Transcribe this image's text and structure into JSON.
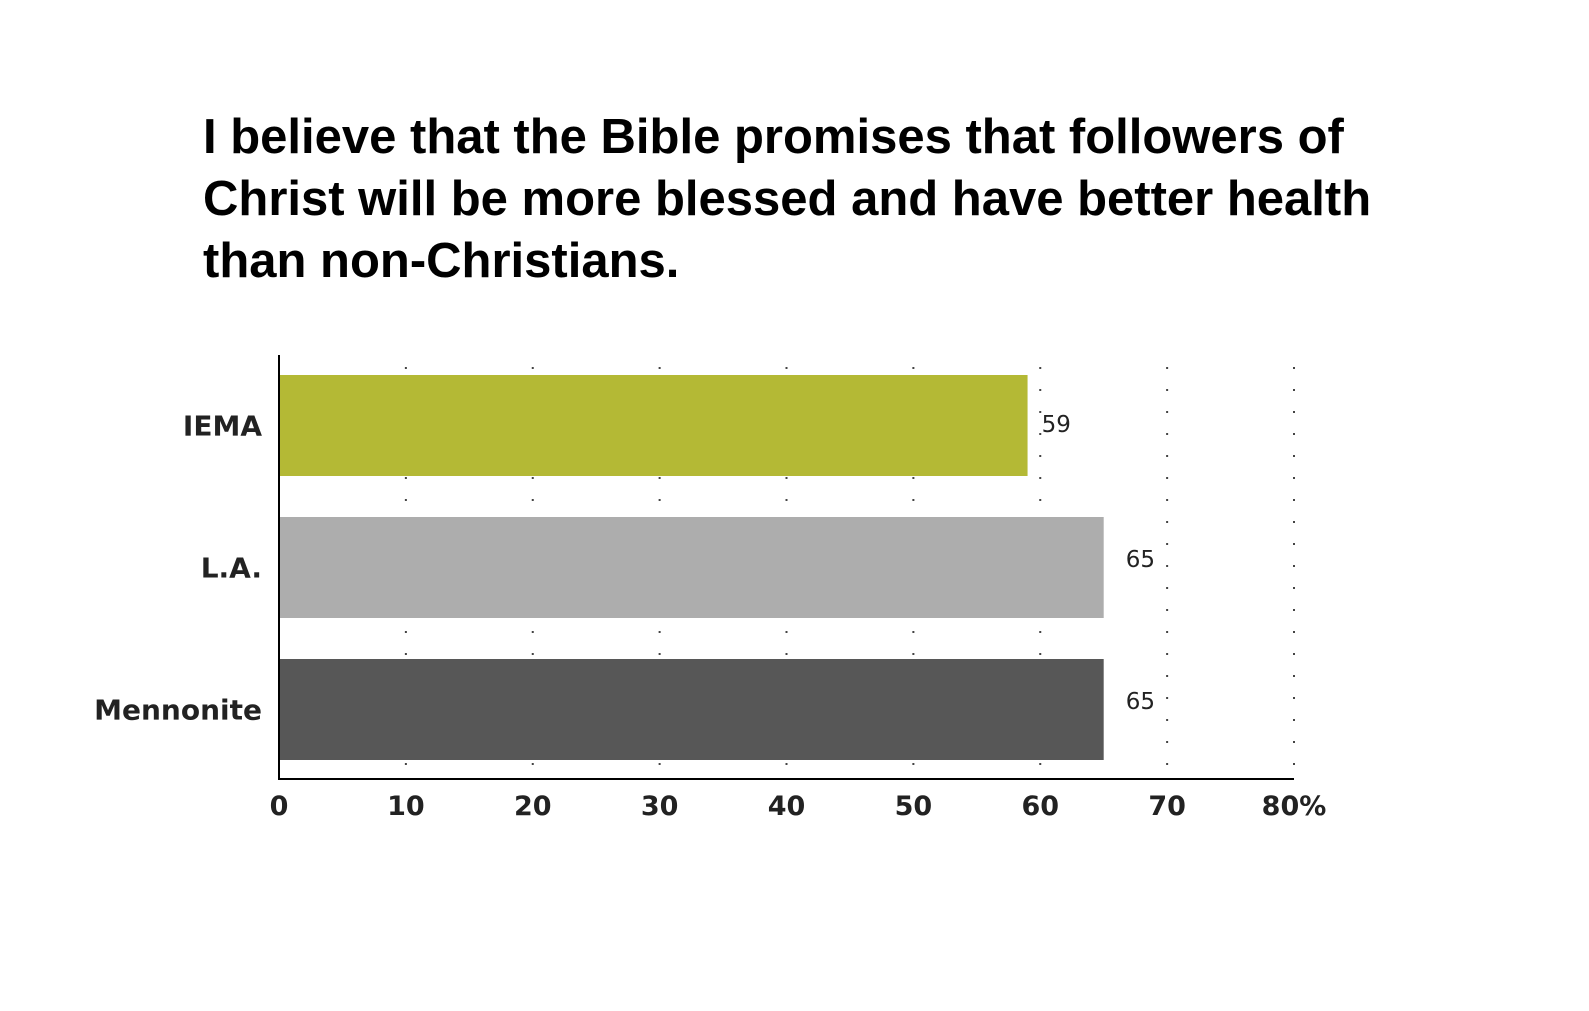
{
  "chart_data": {
    "type": "bar",
    "orientation": "horizontal",
    "title": "I believe that the Bible promises that followers of Christ will be more blessed and have better health than non-Christians.",
    "categories": [
      "IEMA",
      "L.A.",
      "Mennonite"
    ],
    "values": [
      59,
      65,
      65
    ],
    "data_labels": [
      "59",
      "65",
      "65"
    ],
    "colors": [
      "#b4b935",
      "#adadad",
      "#575757"
    ],
    "xlim": [
      0,
      80
    ],
    "xticks": [
      0,
      10,
      20,
      30,
      40,
      50,
      60,
      70,
      80
    ],
    "xtick_labels": [
      "0",
      "10",
      "20",
      "30",
      "40",
      "50",
      "60",
      "70",
      "80%"
    ],
    "grid": "vertical dotted",
    "xlabel": "",
    "ylabel": ""
  }
}
